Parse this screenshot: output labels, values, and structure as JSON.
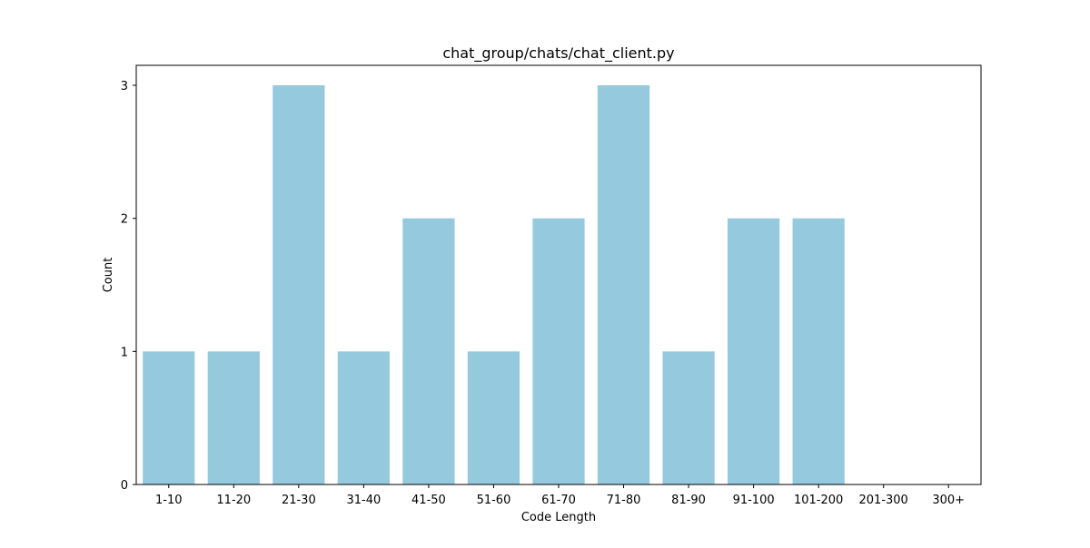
{
  "chart_data": {
    "type": "bar",
    "title": "chat_group/chats/chat_client.py",
    "xlabel": "Code Length",
    "ylabel": "Count",
    "categories": [
      "1-10",
      "11-20",
      "21-30",
      "31-40",
      "41-50",
      "51-60",
      "61-70",
      "71-80",
      "81-90",
      "91-100",
      "101-200",
      "201-300",
      "300+"
    ],
    "values": [
      1,
      1,
      3,
      1,
      2,
      1,
      2,
      3,
      1,
      2,
      2,
      0,
      0
    ],
    "ylim": [
      0,
      3.15
    ],
    "yticks": [
      0,
      1,
      2,
      3
    ],
    "bar_color": "#95c9de",
    "grid": false,
    "legend": "none"
  }
}
